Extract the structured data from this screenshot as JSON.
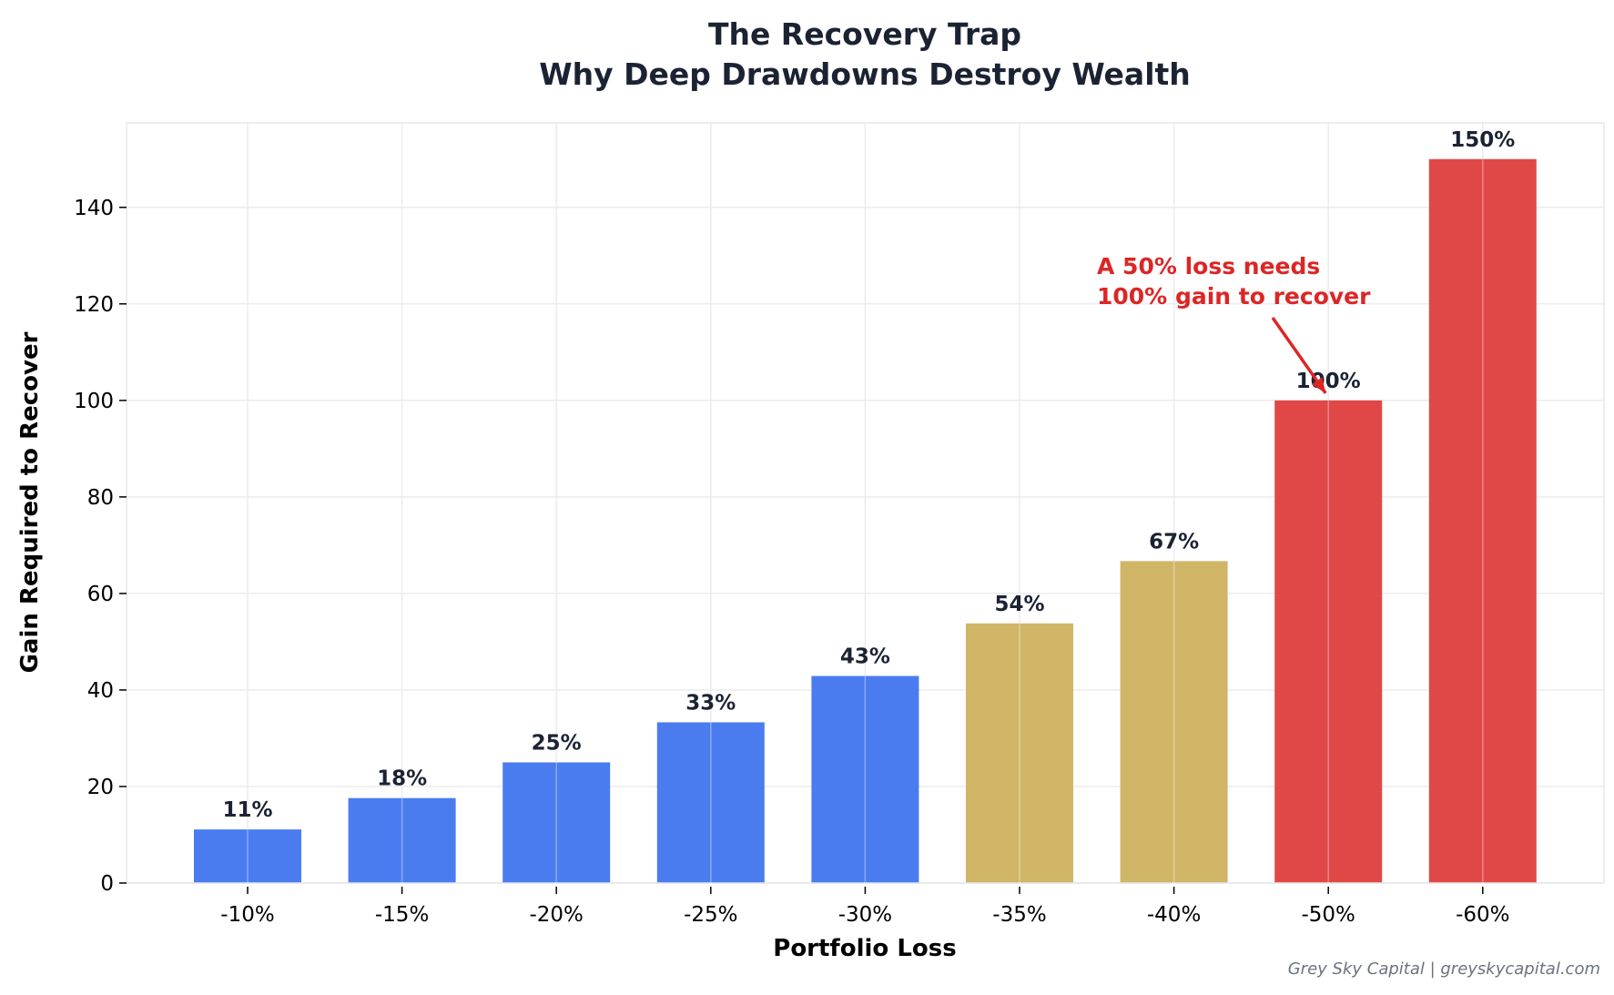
{
  "chart_data": {
    "type": "bar",
    "title_line1": "The Recovery Trap",
    "title_line2": "Why Deep Drawdowns Destroy Wealth",
    "xlabel": "Portfolio Loss",
    "ylabel": "Gain Required to Recover",
    "categories": [
      "-10%",
      "-15%",
      "-20%",
      "-25%",
      "-30%",
      "-35%",
      "-40%",
      "-50%",
      "-60%"
    ],
    "values": [
      11.1,
      17.6,
      25.0,
      33.3,
      42.9,
      53.8,
      66.7,
      100.0,
      150.0
    ],
    "value_labels": [
      "11%",
      "18%",
      "25%",
      "33%",
      "43%",
      "54%",
      "67%",
      "100%",
      "150%"
    ],
    "bar_colors": [
      "#4a7cf0",
      "#4a7cf0",
      "#4a7cf0",
      "#4a7cf0",
      "#4a7cf0",
      "#d1b567",
      "#d1b567",
      "#e04848",
      "#e04848"
    ],
    "ylim": [
      0,
      157.5
    ],
    "yticks": [
      0,
      20,
      40,
      60,
      80,
      100,
      120,
      140
    ],
    "grid": true,
    "annotation": {
      "line1": "A 50% loss needs",
      "line2": "100% gain to recover",
      "target_category": "-50%",
      "target_value": 100,
      "color": "#dc2626"
    },
    "footer": "Grey Sky Capital | greyskycapital.com"
  }
}
